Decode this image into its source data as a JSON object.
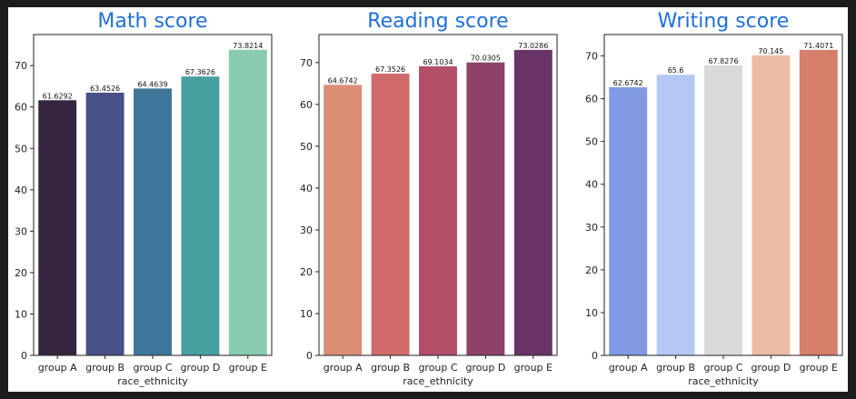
{
  "chart_data": [
    {
      "type": "bar",
      "title": "Math score",
      "xlabel": "race_ethnicity",
      "ylabel": "",
      "categories": [
        "group A",
        "group B",
        "group C",
        "group D",
        "group E"
      ],
      "values": [
        61.6292,
        63.4526,
        64.4639,
        67.3626,
        73.8214
      ],
      "value_labels": [
        "61.6292",
        "63.4526",
        "64.4639",
        "67.3626",
        "73.8214"
      ],
      "ylim": [
        0,
        77.5
      ],
      "yticks": [
        0,
        10,
        20,
        30,
        40,
        50,
        60,
        70
      ],
      "colors": [
        "#35253f",
        "#475286",
        "#3f7598",
        "#489fa0",
        "#88cbae"
      ],
      "grid": false
    },
    {
      "type": "bar",
      "title": "Reading score",
      "xlabel": "race_ethnicity",
      "ylabel": "",
      "categories": [
        "group A",
        "group B",
        "group C",
        "group D",
        "group E"
      ],
      "values": [
        64.6742,
        67.3526,
        69.1034,
        70.0305,
        73.0286
      ],
      "value_labels": [
        "64.6742",
        "67.3526",
        "69.1034",
        "70.0305",
        "73.0286"
      ],
      "ylim": [
        0,
        76.7
      ],
      "yticks": [
        0,
        10,
        20,
        30,
        40,
        50,
        60,
        70
      ],
      "colors": [
        "#dc8d76",
        "#d06a6a",
        "#b15068",
        "#8d416b",
        "#683365"
      ],
      "grid": false
    },
    {
      "type": "bar",
      "title": "Writing score",
      "xlabel": "race_ethnicity",
      "ylabel": "",
      "categories": [
        "group A",
        "group B",
        "group C",
        "group D",
        "group E"
      ],
      "values": [
        62.6742,
        65.6,
        67.8276,
        70.145,
        71.4071
      ],
      "value_labels": [
        "62.6742",
        "65.6",
        "67.8276",
        "70.145",
        "71.4071"
      ],
      "ylim": [
        0,
        75
      ],
      "yticks": [
        0,
        10,
        20,
        30,
        40,
        50,
        60,
        70
      ],
      "colors": [
        "#819ae3",
        "#b4c8f3",
        "#dadada",
        "#ecbca5",
        "#d77f6b"
      ],
      "grid": false
    }
  ]
}
